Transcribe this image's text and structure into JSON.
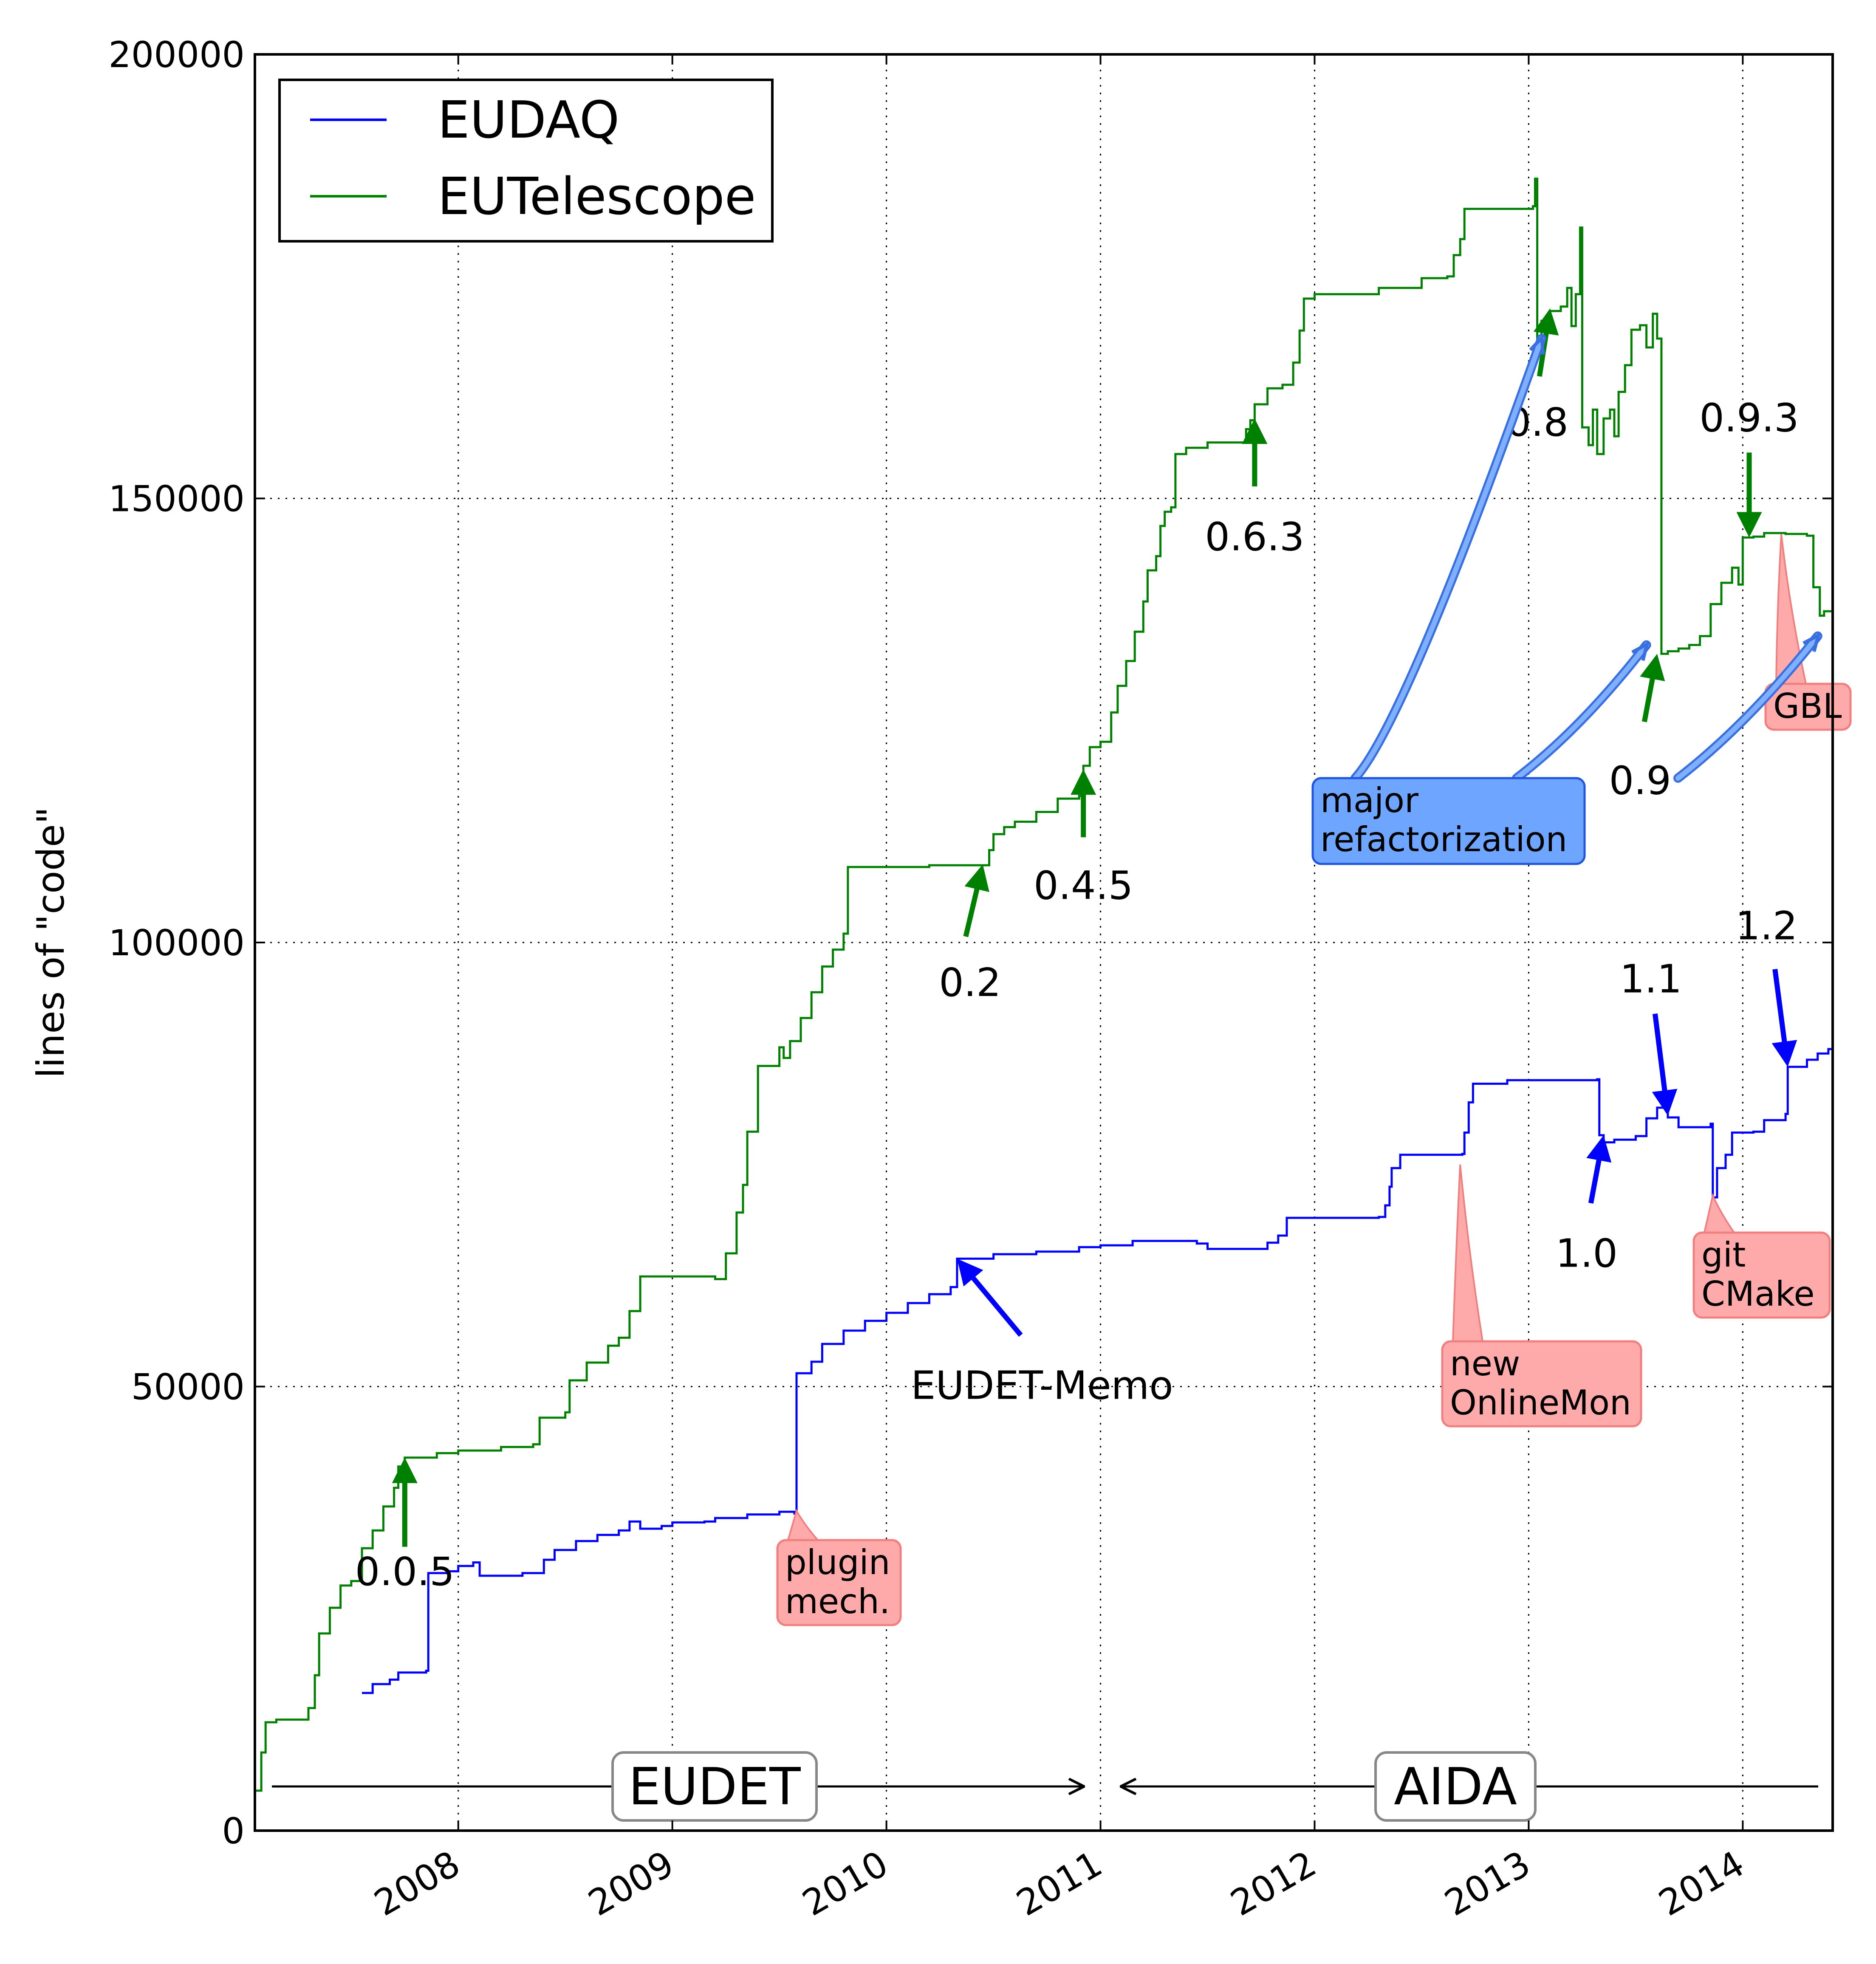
{
  "chart_data": {
    "type": "line",
    "ylabel": "lines of \"code\"",
    "xlim": [
      2007.05,
      2014.42
    ],
    "ylim": [
      0,
      200000
    ],
    "grid": true,
    "x_ticks": [
      2008,
      2009,
      2010,
      2011,
      2012,
      2013,
      2014
    ],
    "y_ticks": [
      0,
      50000,
      100000,
      150000,
      200000
    ],
    "legend_position": "top-left",
    "series": [
      {
        "name": "EUDAQ",
        "color": "#0000ff",
        "points": [
          [
            2007.55,
            15500
          ],
          [
            2007.6,
            16500
          ],
          [
            2007.68,
            17000
          ],
          [
            2007.72,
            17800
          ],
          [
            2007.85,
            18000
          ],
          [
            2007.86,
            29000
          ],
          [
            2007.95,
            29200
          ],
          [
            2008.0,
            29800
          ],
          [
            2008.07,
            30200
          ],
          [
            2008.1,
            28700
          ],
          [
            2008.3,
            29000
          ],
          [
            2008.4,
            30500
          ],
          [
            2008.45,
            31600
          ],
          [
            2008.55,
            32600
          ],
          [
            2008.65,
            33300
          ],
          [
            2008.75,
            33800
          ],
          [
            2008.8,
            34800
          ],
          [
            2008.85,
            34000
          ],
          [
            2008.95,
            34300
          ],
          [
            2009.0,
            34700
          ],
          [
            2009.15,
            34800
          ],
          [
            2009.2,
            35200
          ],
          [
            2009.35,
            35600
          ],
          [
            2009.5,
            35900
          ],
          [
            2009.57,
            35700
          ],
          [
            2009.58,
            51500
          ],
          [
            2009.65,
            52800
          ],
          [
            2009.7,
            54800
          ],
          [
            2009.8,
            56300
          ],
          [
            2009.9,
            57400
          ],
          [
            2010.0,
            58300
          ],
          [
            2010.1,
            59400
          ],
          [
            2010.2,
            60400
          ],
          [
            2010.3,
            61200
          ],
          [
            2010.33,
            64400
          ],
          [
            2010.5,
            64900
          ],
          [
            2010.7,
            65200
          ],
          [
            2010.9,
            65700
          ],
          [
            2011.0,
            65900
          ],
          [
            2011.15,
            66400
          ],
          [
            2011.3,
            66400
          ],
          [
            2011.45,
            66100
          ],
          [
            2011.5,
            65500
          ],
          [
            2011.7,
            65500
          ],
          [
            2011.78,
            66200
          ],
          [
            2011.83,
            67000
          ],
          [
            2011.87,
            69000
          ],
          [
            2012.0,
            69000
          ],
          [
            2012.3,
            69100
          ],
          [
            2012.33,
            70400
          ],
          [
            2012.35,
            72500
          ],
          [
            2012.36,
            74600
          ],
          [
            2012.4,
            76100
          ],
          [
            2012.6,
            76100
          ],
          [
            2012.69,
            76200
          ],
          [
            2012.7,
            78600
          ],
          [
            2012.72,
            82000
          ],
          [
            2012.74,
            84100
          ],
          [
            2012.8,
            84100
          ],
          [
            2012.9,
            84500
          ],
          [
            2013.0,
            84500
          ],
          [
            2013.32,
            84600
          ],
          [
            2013.33,
            78300
          ],
          [
            2013.35,
            77500
          ],
          [
            2013.4,
            77800
          ],
          [
            2013.5,
            78200
          ],
          [
            2013.55,
            80200
          ],
          [
            2013.6,
            81400
          ],
          [
            2013.65,
            80300
          ],
          [
            2013.7,
            79200
          ],
          [
            2013.8,
            79200
          ],
          [
            2013.85,
            79600
          ],
          [
            2013.86,
            71300
          ],
          [
            2013.88,
            74600
          ],
          [
            2013.92,
            76100
          ],
          [
            2013.95,
            78600
          ],
          [
            2014.05,
            78700
          ],
          [
            2014.1,
            80000
          ],
          [
            2014.2,
            80700
          ],
          [
            2014.21,
            86000
          ],
          [
            2014.3,
            86800
          ],
          [
            2014.35,
            87500
          ],
          [
            2014.4,
            88000
          ],
          [
            2014.42,
            90000
          ]
        ]
      },
      {
        "name": "EUTelescope",
        "color": "#008000",
        "points": [
          [
            2007.05,
            4500
          ],
          [
            2007.08,
            8800
          ],
          [
            2007.1,
            12200
          ],
          [
            2007.15,
            12500
          ],
          [
            2007.25,
            12500
          ],
          [
            2007.3,
            13800
          ],
          [
            2007.33,
            17500
          ],
          [
            2007.35,
            22200
          ],
          [
            2007.4,
            25100
          ],
          [
            2007.45,
            27600
          ],
          [
            2007.5,
            28100
          ],
          [
            2007.55,
            31800
          ],
          [
            2007.6,
            33800
          ],
          [
            2007.65,
            36500
          ],
          [
            2007.7,
            38600
          ],
          [
            2007.72,
            41000
          ],
          [
            2007.75,
            42000
          ],
          [
            2007.9,
            42500
          ],
          [
            2008.0,
            42800
          ],
          [
            2008.1,
            42800
          ],
          [
            2008.2,
            43200
          ],
          [
            2008.35,
            43500
          ],
          [
            2008.38,
            46500
          ],
          [
            2008.5,
            47100
          ],
          [
            2008.52,
            50700
          ],
          [
            2008.6,
            52700
          ],
          [
            2008.7,
            54600
          ],
          [
            2008.75,
            55500
          ],
          [
            2008.8,
            58500
          ],
          [
            2008.85,
            62400
          ],
          [
            2009.0,
            62400
          ],
          [
            2009.2,
            62100
          ],
          [
            2009.25,
            65000
          ],
          [
            2009.3,
            69600
          ],
          [
            2009.33,
            72700
          ],
          [
            2009.35,
            78700
          ],
          [
            2009.4,
            86100
          ],
          [
            2009.5,
            88200
          ],
          [
            2009.52,
            87000
          ],
          [
            2009.55,
            88900
          ],
          [
            2009.6,
            91500
          ],
          [
            2009.65,
            94400
          ],
          [
            2009.7,
            97300
          ],
          [
            2009.75,
            99200
          ],
          [
            2009.8,
            101000
          ],
          [
            2009.82,
            108500
          ],
          [
            2010.0,
            108500
          ],
          [
            2010.2,
            108700
          ],
          [
            2010.45,
            108700
          ],
          [
            2010.48,
            110400
          ],
          [
            2010.5,
            112200
          ],
          [
            2010.55,
            113000
          ],
          [
            2010.6,
            113600
          ],
          [
            2010.7,
            114700
          ],
          [
            2010.8,
            116200
          ],
          [
            2010.9,
            116500
          ],
          [
            2010.92,
            119900
          ],
          [
            2010.95,
            122000
          ],
          [
            2011.0,
            122600
          ],
          [
            2011.05,
            125900
          ],
          [
            2011.08,
            128900
          ],
          [
            2011.12,
            131700
          ],
          [
            2011.16,
            135000
          ],
          [
            2011.2,
            138400
          ],
          [
            2011.22,
            141900
          ],
          [
            2011.26,
            143500
          ],
          [
            2011.28,
            146900
          ],
          [
            2011.3,
            148500
          ],
          [
            2011.33,
            149000
          ],
          [
            2011.35,
            155000
          ],
          [
            2011.4,
            155700
          ],
          [
            2011.5,
            156300
          ],
          [
            2011.65,
            156300
          ],
          [
            2011.68,
            157800
          ],
          [
            2011.7,
            158800
          ],
          [
            2011.72,
            160600
          ],
          [
            2011.78,
            162400
          ],
          [
            2011.85,
            162800
          ],
          [
            2011.9,
            165300
          ],
          [
            2011.93,
            168900
          ],
          [
            2011.95,
            172500
          ],
          [
            2012.0,
            173000
          ],
          [
            2012.15,
            173000
          ],
          [
            2012.3,
            173700
          ],
          [
            2012.5,
            174800
          ],
          [
            2012.62,
            175000
          ],
          [
            2012.65,
            177400
          ],
          [
            2012.68,
            179200
          ],
          [
            2012.7,
            182600
          ],
          [
            2012.8,
            182600
          ],
          [
            2013.02,
            182900
          ],
          [
            2013.03,
            186000
          ],
          [
            2013.04,
            167000
          ],
          [
            2013.06,
            170000
          ],
          [
            2013.1,
            171100
          ],
          [
            2013.15,
            171600
          ],
          [
            2013.18,
            173700
          ],
          [
            2013.2,
            169400
          ],
          [
            2013.22,
            173000
          ],
          [
            2013.24,
            180500
          ],
          [
            2013.25,
            158000
          ],
          [
            2013.28,
            156000
          ],
          [
            2013.3,
            160000
          ],
          [
            2013.32,
            155000
          ],
          [
            2013.35,
            159000
          ],
          [
            2013.38,
            160000
          ],
          [
            2013.4,
            157000
          ],
          [
            2013.42,
            162000
          ],
          [
            2013.45,
            165000
          ],
          [
            2013.48,
            169000
          ],
          [
            2013.52,
            169500
          ],
          [
            2013.55,
            167000
          ],
          [
            2013.58,
            170800
          ],
          [
            2013.6,
            168000
          ],
          [
            2013.62,
            132500
          ],
          [
            2013.65,
            132800
          ],
          [
            2013.7,
            133100
          ],
          [
            2013.75,
            133500
          ],
          [
            2013.8,
            134500
          ],
          [
            2013.85,
            138100
          ],
          [
            2013.9,
            140500
          ],
          [
            2013.95,
            142200
          ],
          [
            2013.98,
            140300
          ],
          [
            2014.0,
            145600
          ],
          [
            2014.05,
            145700
          ],
          [
            2014.1,
            146100
          ],
          [
            2014.2,
            146000
          ],
          [
            2014.3,
            145800
          ],
          [
            2014.33,
            140000
          ],
          [
            2014.36,
            136800
          ],
          [
            2014.38,
            137300
          ],
          [
            2014.42,
            132000
          ]
        ]
      }
    ],
    "version_labels": [
      {
        "label": "0.0.5",
        "series": "EUTelescope",
        "x": 2007.75,
        "y": 42000
      },
      {
        "label": "0.2",
        "series": "EUTelescope",
        "x": 2010.45,
        "y": 108800
      },
      {
        "label": "0.4.5",
        "series": "EUTelescope",
        "x": 2010.92,
        "y": 119500
      },
      {
        "label": "0.6.3",
        "series": "EUTelescope",
        "x": 2011.72,
        "y": 159000
      },
      {
        "label": "0.8",
        "series": "EUTelescope",
        "x": 2013.1,
        "y": 171400
      },
      {
        "label": "0.9",
        "series": "EUTelescope",
        "x": 2013.6,
        "y": 132500
      },
      {
        "label": "0.9.3",
        "series": "EUTelescope",
        "x": 2014.03,
        "y": 145600
      },
      {
        "label": "1.0",
        "series": "EUDAQ",
        "x": 2013.35,
        "y": 78300
      },
      {
        "label": "1.1",
        "series": "EUDAQ",
        "x": 2013.65,
        "y": 80500
      },
      {
        "label": "1.2",
        "series": "EUDAQ",
        "x": 2014.21,
        "y": 86000
      },
      {
        "label": "EUDET-Memo",
        "series": "EUDAQ",
        "x": 2010.33,
        "y": 64400
      }
    ],
    "annotation_boxes": [
      {
        "lines": [
          "plugin",
          "mech."
        ],
        "target_x": 2009.58,
        "target_y": 36000,
        "color": "#ffaaaa"
      },
      {
        "lines": [
          "new",
          "OnlineMon"
        ],
        "target_x": 2012.68,
        "target_y": 75000,
        "color": "#ffaaaa"
      },
      {
        "lines": [
          "git",
          "CMake"
        ],
        "target_x": 2013.86,
        "target_y": 71500,
        "color": "#ffaaaa"
      },
      {
        "lines": [
          "GBL"
        ],
        "target_x": 2014.18,
        "target_y": 146000,
        "color": "#ffaaaa"
      },
      {
        "lines": [
          "major",
          "refactorization"
        ],
        "targets": [
          [
            2013.06,
            168000
          ],
          [
            2013.55,
            133500
          ],
          [
            2014.35,
            134500
          ]
        ],
        "color": "#6ea6ff"
      }
    ],
    "eras": [
      {
        "label": "EUDET",
        "from": 2007.05,
        "to": 2011.0
      },
      {
        "label": "AIDA",
        "from": 2011.0,
        "to": 2014.42
      }
    ]
  }
}
